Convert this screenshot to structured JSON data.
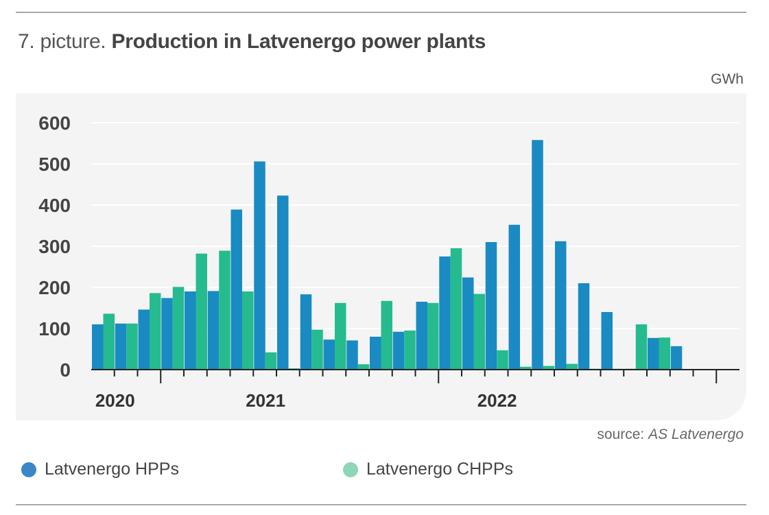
{
  "header": {
    "title_prefix": "7. picture.",
    "title_main": "Production in Latvenergo power plants",
    "unit": "GWh"
  },
  "footer": {
    "source_prefix": "source:",
    "source_name": "AS Latvenergo"
  },
  "colors": {
    "hpp": "#1a8ac3",
    "chpp": "#26bb8f",
    "legend_hpp": "#3a86c6",
    "legend_chpp": "#8dd6b8",
    "grid": "#ffffff",
    "axis": "#222222"
  },
  "chart_data": {
    "type": "bar",
    "title": "Production in Latvenergo power plants",
    "ylabel": "GWh",
    "xlabel": "",
    "ylim": [
      0,
      600
    ],
    "yticks": [
      0,
      100,
      200,
      300,
      400,
      500,
      600
    ],
    "grid": true,
    "legend_position": "bottom",
    "year_labels": [
      "2020",
      "2021",
      "2022"
    ],
    "categories": [
      "2020-01",
      "2020-02",
      "2020-03",
      "2020-04",
      "2020-05",
      "2020-06",
      "2020-07",
      "2020-08",
      "2020-09",
      "2020-10",
      "2020-11",
      "2020-12",
      "2021-01",
      "2021-02",
      "2021-03",
      "2021-04",
      "2021-05",
      "2021-06",
      "2021-07",
      "2021-08",
      "2021-09",
      "2021-10",
      "2021-11",
      "2021-12",
      "2022-01",
      "2022-02",
      "2022-03",
      "2022-04"
    ],
    "series": [
      {
        "name": "Latvenergo HPPs",
        "values": [
          110,
          112,
          146,
          174,
          190,
          191,
          389,
          506,
          423,
          183,
          73,
          71,
          80,
          92,
          165,
          275,
          224,
          310,
          352,
          558,
          312,
          210,
          140,
          2,
          77,
          57,
          0,
          0
        ]
      },
      {
        "name": "Latvenergo CHPPs",
        "values": [
          136,
          112,
          186,
          201,
          282,
          289,
          190,
          42,
          3,
          97,
          162,
          13,
          167,
          95,
          162,
          295,
          184,
          47,
          7,
          9,
          14,
          2,
          2,
          110,
          78,
          0,
          0,
          0
        ]
      }
    ]
  }
}
